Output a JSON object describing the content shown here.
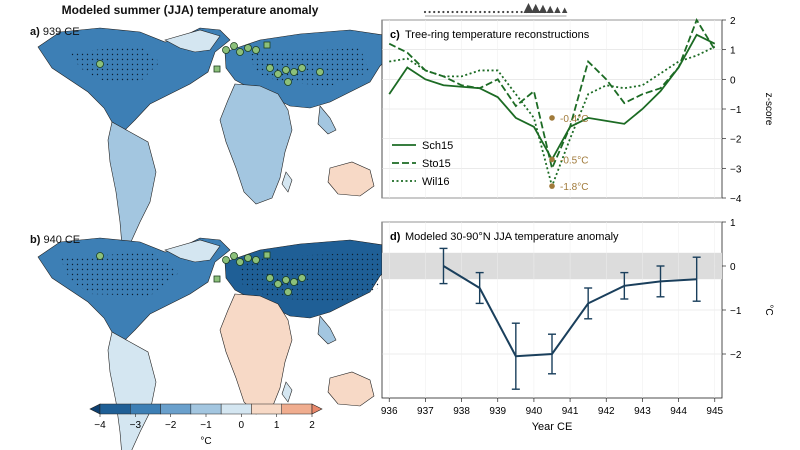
{
  "title": "Modeled summer (JJA) temperature anomaly",
  "panels": {
    "a": {
      "letter": "a)",
      "label": "939 CE"
    },
    "b": {
      "letter": "b)",
      "label": "940 CE"
    },
    "c": {
      "letter": "c)",
      "label": "Tree-ring temperature reconstructions"
    },
    "d": {
      "letter": "d)",
      "label": "Modeled 30-90°N JJA temperature anomaly"
    }
  },
  "colorbar": {
    "ticks": [
      "−4",
      "−3",
      "−2",
      "−1",
      "0",
      "1",
      "2"
    ],
    "unit": "°C",
    "colors": [
      "#1f5f96",
      "#3d7fb5",
      "#6aa0cc",
      "#a3c6e0",
      "#d4e6f1",
      "#f7d9c6",
      "#f0ad8f"
    ]
  },
  "chart_data": [
    {
      "type": "line",
      "panel": "c",
      "title": "Tree-ring temperature reconstructions",
      "ylabel": "z-score",
      "ylim": [
        -4,
        2
      ],
      "yticks": [
        "−4",
        "−3",
        "−2",
        "−1",
        "0",
        "1",
        "2"
      ],
      "x": [
        936,
        936.5,
        937,
        937.5,
        938,
        938.5,
        939,
        939.5,
        940,
        940.5,
        941,
        941.5,
        942,
        942.5,
        943,
        943.5,
        944,
        944.5,
        945
      ],
      "series": [
        {
          "name": "Sch15",
          "style": "solid",
          "color": "#1c6b24",
          "values": [
            -0.5,
            0.4,
            0.0,
            -0.2,
            -0.25,
            -0.3,
            -0.6,
            -1.3,
            -1.6,
            -2.7,
            -1.6,
            -1.3,
            -1.4,
            -1.5,
            -1.0,
            -0.4,
            0.4,
            1.5,
            1.2
          ]
        },
        {
          "name": "Sto15",
          "style": "dashed",
          "color": "#1c6b24",
          "values": [
            1.2,
            0.9,
            0.3,
            0.1,
            -0.2,
            -0.3,
            0.0,
            -0.9,
            -0.4,
            -3.0,
            -1.6,
            0.6,
            0.0,
            -0.8,
            -0.5,
            -0.3,
            0.4,
            2.0,
            1.0
          ]
        },
        {
          "name": "Wil16",
          "style": "dotted",
          "color": "#1c6b24",
          "values": [
            0.6,
            0.7,
            0.3,
            0.1,
            0.1,
            0.3,
            0.3,
            -0.5,
            -1.3,
            -3.6,
            -2.0,
            -0.5,
            -0.2,
            -0.3,
            -0.2,
            0.2,
            0.6,
            0.8,
            1.1
          ]
        }
      ],
      "annotations": [
        {
          "x": 940.5,
          "y": -1.3,
          "label": "-0.4°C"
        },
        {
          "x": 940.5,
          "y": -2.7,
          "label": "-0.5°C"
        },
        {
          "x": 940.5,
          "y": -3.6,
          "label": "-1.8°C"
        }
      ],
      "annotation_color": "#a07a3a"
    },
    {
      "type": "line",
      "panel": "d",
      "title": "Modeled 30-90°N JJA temperature anomaly",
      "xlabel": "Year CE",
      "ylabel": "°C",
      "ylim": [
        -3,
        1
      ],
      "yticks": [
        "−2",
        "−1",
        "0",
        "1"
      ],
      "xlim": [
        935.8,
        945.2
      ],
      "xticks": [
        "936",
        "937",
        "938",
        "939",
        "940",
        "941",
        "942",
        "943",
        "944",
        "945"
      ],
      "shaded_band": [
        -0.3,
        0.3
      ],
      "series": [
        {
          "name": "",
          "color": "#1a3f5c",
          "x": [
            937.5,
            938.5,
            939.5,
            940.5,
            941.5,
            942.5,
            943.5,
            944.5
          ],
          "values": [
            0.0,
            -0.5,
            -2.05,
            -2.0,
            -0.85,
            -0.45,
            -0.35,
            -0.3
          ],
          "errors": [
            0.4,
            0.35,
            0.75,
            0.45,
            0.35,
            0.3,
            0.35,
            0.5
          ]
        }
      ]
    }
  ],
  "event_markers": {
    "dots": 28,
    "triangles": [
      939.85,
      940.05,
      940.25,
      940.45,
      940.65,
      940.85
    ],
    "color": "#444444"
  }
}
